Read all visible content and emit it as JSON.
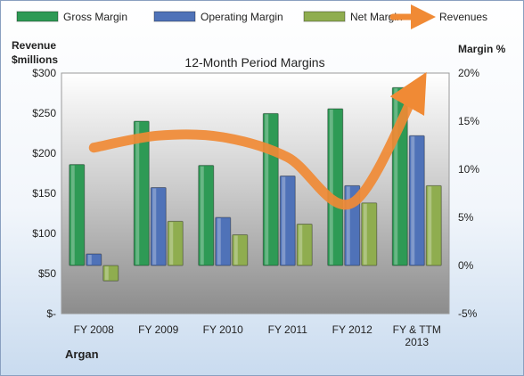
{
  "chart_data": {
    "type": "bar",
    "title": "12-Month Period Margins",
    "company": "Argan",
    "categories": [
      "FY 2008",
      "FY 2009",
      "FY 2010",
      "FY 2011",
      "FY 2012",
      "FY & TTM 2013"
    ],
    "series": [
      {
        "name": "Gross Margin",
        "type": "bar",
        "axis": "right",
        "color": "#2e9a55",
        "values": [
          10.5,
          15.0,
          10.4,
          15.8,
          16.3,
          18.5
        ]
      },
      {
        "name": "Operating Margin",
        "type": "bar",
        "axis": "right",
        "color": "#4f72b8",
        "values": [
          1.2,
          8.1,
          5.0,
          9.3,
          8.3,
          13.5
        ]
      },
      {
        "name": "Net Margin",
        "type": "bar",
        "axis": "right",
        "color": "#8fad4f",
        "values": [
          -1.6,
          4.6,
          3.2,
          4.3,
          6.5,
          8.3
        ]
      },
      {
        "name": "Revenues",
        "type": "line",
        "axis": "left",
        "color": "#f08a35",
        "values": [
          207,
          222,
          220,
          195,
          138,
          280
        ]
      }
    ],
    "left_axis": {
      "label": "Revenue $millions",
      "min": 0,
      "max": 300,
      "step": 50,
      "ticks": [
        "$-",
        "$50",
        "$100",
        "$150",
        "$200",
        "$250",
        "$300"
      ]
    },
    "right_axis": {
      "label": "Margin %",
      "min": -5,
      "max": 20,
      "step": 5,
      "ticks": [
        "-5%",
        "0%",
        "5%",
        "10%",
        "15%",
        "20%"
      ]
    },
    "legend_position": "top",
    "grid": false
  }
}
